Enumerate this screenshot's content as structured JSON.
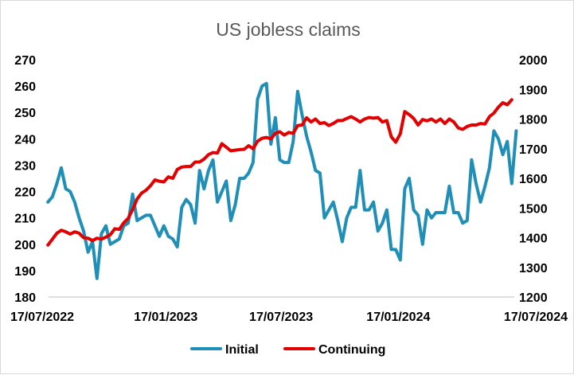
{
  "chart_data": {
    "type": "line",
    "title": "US jobless claims",
    "xlabel": "",
    "ylabel": "",
    "xlim": [
      "17/07/2022",
      "17/07/2024"
    ],
    "x_ticks": [
      "17/07/2022",
      "17/01/2023",
      "17/07/2023",
      "17/01/2024",
      "17/07/2024"
    ],
    "y_left": {
      "min": 180,
      "max": 270,
      "ticks": [
        180,
        190,
        200,
        210,
        220,
        230,
        240,
        250,
        260,
        270
      ]
    },
    "y_right": {
      "min": 1200,
      "max": 2000,
      "ticks": [
        1200,
        1300,
        1400,
        1500,
        1600,
        1700,
        1800,
        1900,
        2000
      ]
    },
    "grid": false,
    "legend_position": "bottom",
    "series": [
      {
        "name": "Initial",
        "axis": "left",
        "color": "#1f8fb8",
        "values": [
          [
            "2022-07-16",
            216
          ],
          [
            "2022-07-23",
            218
          ],
          [
            "2022-07-30",
            223
          ],
          [
            "2022-08-06",
            229
          ],
          [
            "2022-08-13",
            221
          ],
          [
            "2022-08-20",
            220
          ],
          [
            "2022-08-27",
            216
          ],
          [
            "2022-09-03",
            210
          ],
          [
            "2022-09-10",
            205
          ],
          [
            "2022-09-17",
            197
          ],
          [
            "2022-09-24",
            201
          ],
          [
            "2022-10-01",
            187
          ],
          [
            "2022-10-08",
            204
          ],
          [
            "2022-10-15",
            207
          ],
          [
            "2022-10-22",
            200
          ],
          [
            "2022-10-29",
            201
          ],
          [
            "2022-11-05",
            202
          ],
          [
            "2022-11-12",
            207
          ],
          [
            "2022-11-19",
            208
          ],
          [
            "2022-11-26",
            219
          ],
          [
            "2022-12-03",
            209
          ],
          [
            "2022-12-10",
            210
          ],
          [
            "2022-12-17",
            211
          ],
          [
            "2022-12-24",
            211
          ],
          [
            "2022-12-31",
            207
          ],
          [
            "2023-01-07",
            203
          ],
          [
            "2023-01-14",
            207
          ],
          [
            "2023-01-21",
            203
          ],
          [
            "2023-01-28",
            202
          ],
          [
            "2023-02-04",
            199
          ],
          [
            "2023-02-11",
            214
          ],
          [
            "2023-02-18",
            217
          ],
          [
            "2023-02-25",
            215
          ],
          [
            "2023-03-04",
            208
          ],
          [
            "2023-03-11",
            228
          ],
          [
            "2023-03-18",
            221
          ],
          [
            "2023-03-25",
            228
          ],
          [
            "2023-04-01",
            232
          ],
          [
            "2023-04-08",
            216
          ],
          [
            "2023-04-15",
            220
          ],
          [
            "2023-04-22",
            224
          ],
          [
            "2023-04-29",
            209
          ],
          [
            "2023-05-06",
            215
          ],
          [
            "2023-05-13",
            225
          ],
          [
            "2023-05-20",
            225
          ],
          [
            "2023-05-27",
            227
          ],
          [
            "2023-06-03",
            231
          ],
          [
            "2023-06-10",
            255
          ],
          [
            "2023-06-17",
            260
          ],
          [
            "2023-06-24",
            261
          ],
          [
            "2023-07-01",
            238
          ],
          [
            "2023-07-08",
            248
          ],
          [
            "2023-07-15",
            232
          ],
          [
            "2023-07-22",
            231
          ],
          [
            "2023-07-29",
            231
          ],
          [
            "2023-08-05",
            239
          ],
          [
            "2023-08-12",
            258
          ],
          [
            "2023-08-19",
            249
          ],
          [
            "2023-08-26",
            241
          ],
          [
            "2023-09-02",
            235
          ],
          [
            "2023-09-09",
            228
          ],
          [
            "2023-09-16",
            227
          ],
          [
            "2023-09-23",
            210
          ],
          [
            "2023-09-30",
            213
          ],
          [
            "2023-10-07",
            216
          ],
          [
            "2023-10-14",
            209
          ],
          [
            "2023-10-21",
            201
          ],
          [
            "2023-10-28",
            210
          ],
          [
            "2023-11-04",
            214
          ],
          [
            "2023-11-11",
            214
          ],
          [
            "2023-11-18",
            228
          ],
          [
            "2023-11-25",
            213
          ],
          [
            "2023-12-02",
            213
          ],
          [
            "2023-12-09",
            216
          ],
          [
            "2023-12-16",
            205
          ],
          [
            "2023-12-23",
            208
          ],
          [
            "2023-12-30",
            213
          ],
          [
            "2024-01-06",
            198
          ],
          [
            "2024-01-13",
            198
          ],
          [
            "2024-01-20",
            194
          ],
          [
            "2024-01-27",
            221
          ],
          [
            "2024-02-03",
            225
          ],
          [
            "2024-02-10",
            213
          ],
          [
            "2024-02-17",
            211
          ],
          [
            "2024-02-24",
            200
          ],
          [
            "2024-03-02",
            213
          ],
          [
            "2024-03-09",
            210
          ],
          [
            "2024-03-16",
            212
          ],
          [
            "2024-03-23",
            212
          ],
          [
            "2024-03-30",
            212
          ],
          [
            "2024-04-06",
            222
          ],
          [
            "2024-04-13",
            212
          ],
          [
            "2024-04-20",
            212
          ],
          [
            "2024-04-27",
            208
          ],
          [
            "2024-05-04",
            209
          ],
          [
            "2024-05-11",
            232
          ],
          [
            "2024-05-18",
            223
          ],
          [
            "2024-05-25",
            216
          ],
          [
            "2024-06-01",
            222
          ],
          [
            "2024-06-08",
            229
          ],
          [
            "2024-06-15",
            243
          ],
          [
            "2024-06-22",
            240
          ],
          [
            "2024-06-29",
            234
          ],
          [
            "2024-07-06",
            239
          ],
          [
            "2024-07-13",
            223
          ],
          [
            "2024-07-20",
            243
          ]
        ]
      },
      {
        "name": "Continuing",
        "axis": "right",
        "color": "#e30000",
        "values": [
          [
            "2022-07-16",
            1375
          ],
          [
            "2022-07-23",
            1395
          ],
          [
            "2022-07-30",
            1415
          ],
          [
            "2022-08-06",
            1425
          ],
          [
            "2022-08-13",
            1420
          ],
          [
            "2022-08-20",
            1412
          ],
          [
            "2022-08-27",
            1420
          ],
          [
            "2022-09-03",
            1415
          ],
          [
            "2022-09-10",
            1400
          ],
          [
            "2022-09-17",
            1398
          ],
          [
            "2022-09-24",
            1390
          ],
          [
            "2022-10-01",
            1398
          ],
          [
            "2022-10-08",
            1395
          ],
          [
            "2022-10-15",
            1402
          ],
          [
            "2022-10-22",
            1410
          ],
          [
            "2022-10-29",
            1430
          ],
          [
            "2022-11-05",
            1428
          ],
          [
            "2022-11-12",
            1450
          ],
          [
            "2022-11-19",
            1465
          ],
          [
            "2022-11-26",
            1495
          ],
          [
            "2022-12-03",
            1530
          ],
          [
            "2022-12-10",
            1550
          ],
          [
            "2022-12-17",
            1560
          ],
          [
            "2022-12-24",
            1575
          ],
          [
            "2022-12-31",
            1595
          ],
          [
            "2023-01-07",
            1590
          ],
          [
            "2023-01-14",
            1588
          ],
          [
            "2023-01-21",
            1605
          ],
          [
            "2023-01-28",
            1600
          ],
          [
            "2023-02-04",
            1630
          ],
          [
            "2023-02-11",
            1638
          ],
          [
            "2023-02-18",
            1640
          ],
          [
            "2023-02-25",
            1640
          ],
          [
            "2023-03-04",
            1655
          ],
          [
            "2023-03-11",
            1655
          ],
          [
            "2023-03-18",
            1665
          ],
          [
            "2023-03-25",
            1680
          ],
          [
            "2023-04-01",
            1687
          ],
          [
            "2023-04-08",
            1685
          ],
          [
            "2023-04-15",
            1717
          ],
          [
            "2023-04-22",
            1705
          ],
          [
            "2023-04-29",
            1693
          ],
          [
            "2023-05-06",
            1695
          ],
          [
            "2023-05-13",
            1697
          ],
          [
            "2023-05-20",
            1698
          ],
          [
            "2023-05-27",
            1710
          ],
          [
            "2023-06-03",
            1700
          ],
          [
            "2023-06-10",
            1725
          ],
          [
            "2023-06-17",
            1735
          ],
          [
            "2023-06-24",
            1738
          ],
          [
            "2023-07-01",
            1733
          ],
          [
            "2023-07-08",
            1752
          ],
          [
            "2023-07-15",
            1757
          ],
          [
            "2023-07-22",
            1746
          ],
          [
            "2023-07-29",
            1755
          ],
          [
            "2023-08-05",
            1752
          ],
          [
            "2023-08-12",
            1778
          ],
          [
            "2023-08-19",
            1780
          ],
          [
            "2023-08-26",
            1804
          ],
          [
            "2023-09-02",
            1790
          ],
          [
            "2023-09-09",
            1800
          ],
          [
            "2023-09-16",
            1785
          ],
          [
            "2023-09-23",
            1788
          ],
          [
            "2023-09-30",
            1778
          ],
          [
            "2023-10-07",
            1785
          ],
          [
            "2023-10-14",
            1795
          ],
          [
            "2023-10-21",
            1795
          ],
          [
            "2023-10-28",
            1802
          ],
          [
            "2023-11-04",
            1808
          ],
          [
            "2023-11-11",
            1800
          ],
          [
            "2023-11-18",
            1790
          ],
          [
            "2023-11-25",
            1800
          ],
          [
            "2023-12-02",
            1805
          ],
          [
            "2023-12-09",
            1803
          ],
          [
            "2023-12-16",
            1805
          ],
          [
            "2023-12-23",
            1790
          ],
          [
            "2023-12-30",
            1795
          ],
          [
            "2024-01-06",
            1740
          ],
          [
            "2024-01-13",
            1722
          ],
          [
            "2024-01-20",
            1750
          ],
          [
            "2024-01-27",
            1825
          ],
          [
            "2024-02-03",
            1815
          ],
          [
            "2024-02-10",
            1802
          ],
          [
            "2024-02-17",
            1780
          ],
          [
            "2024-02-24",
            1798
          ],
          [
            "2024-03-02",
            1794
          ],
          [
            "2024-03-09",
            1800
          ],
          [
            "2024-03-16",
            1790
          ],
          [
            "2024-03-23",
            1800
          ],
          [
            "2024-03-30",
            1785
          ],
          [
            "2024-04-06",
            1800
          ],
          [
            "2024-04-13",
            1790
          ],
          [
            "2024-04-20",
            1770
          ],
          [
            "2024-04-27",
            1765
          ],
          [
            "2024-05-04",
            1775
          ],
          [
            "2024-05-11",
            1780
          ],
          [
            "2024-05-18",
            1780
          ],
          [
            "2024-05-25",
            1785
          ],
          [
            "2024-06-01",
            1783
          ],
          [
            "2024-06-08",
            1808
          ],
          [
            "2024-06-15",
            1820
          ],
          [
            "2024-06-22",
            1840
          ],
          [
            "2024-06-29",
            1855
          ],
          [
            "2024-07-06",
            1848
          ],
          [
            "2024-07-13",
            1865
          ]
        ]
      }
    ]
  }
}
